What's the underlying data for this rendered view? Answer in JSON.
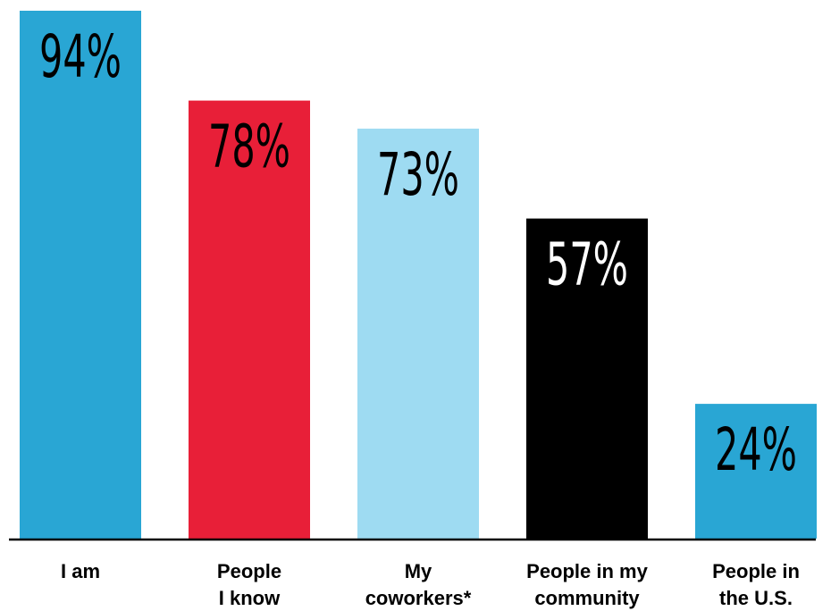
{
  "chart_data": {
    "type": "bar",
    "categories": [
      [
        "I am"
      ],
      [
        "People",
        "I know"
      ],
      [
        "My",
        "coworkers*"
      ],
      [
        "People in my",
        "community"
      ],
      [
        "People in",
        "the U.S."
      ]
    ],
    "values": [
      94,
      78,
      73,
      57,
      24
    ],
    "value_labels": [
      "94%",
      "78%",
      "73%",
      "57%",
      "24%"
    ],
    "colors": [
      "#29a6d4",
      "#e81f38",
      "#9edbf2",
      "#000000",
      "#29a6d4"
    ],
    "value_label_colors": [
      "#000000",
      "#000000",
      "#000000",
      "#ffffff",
      "#000000"
    ],
    "ylim": [
      0,
      100
    ],
    "title": "",
    "xlabel": "",
    "ylabel": "",
    "grid": false,
    "legend": "none"
  }
}
